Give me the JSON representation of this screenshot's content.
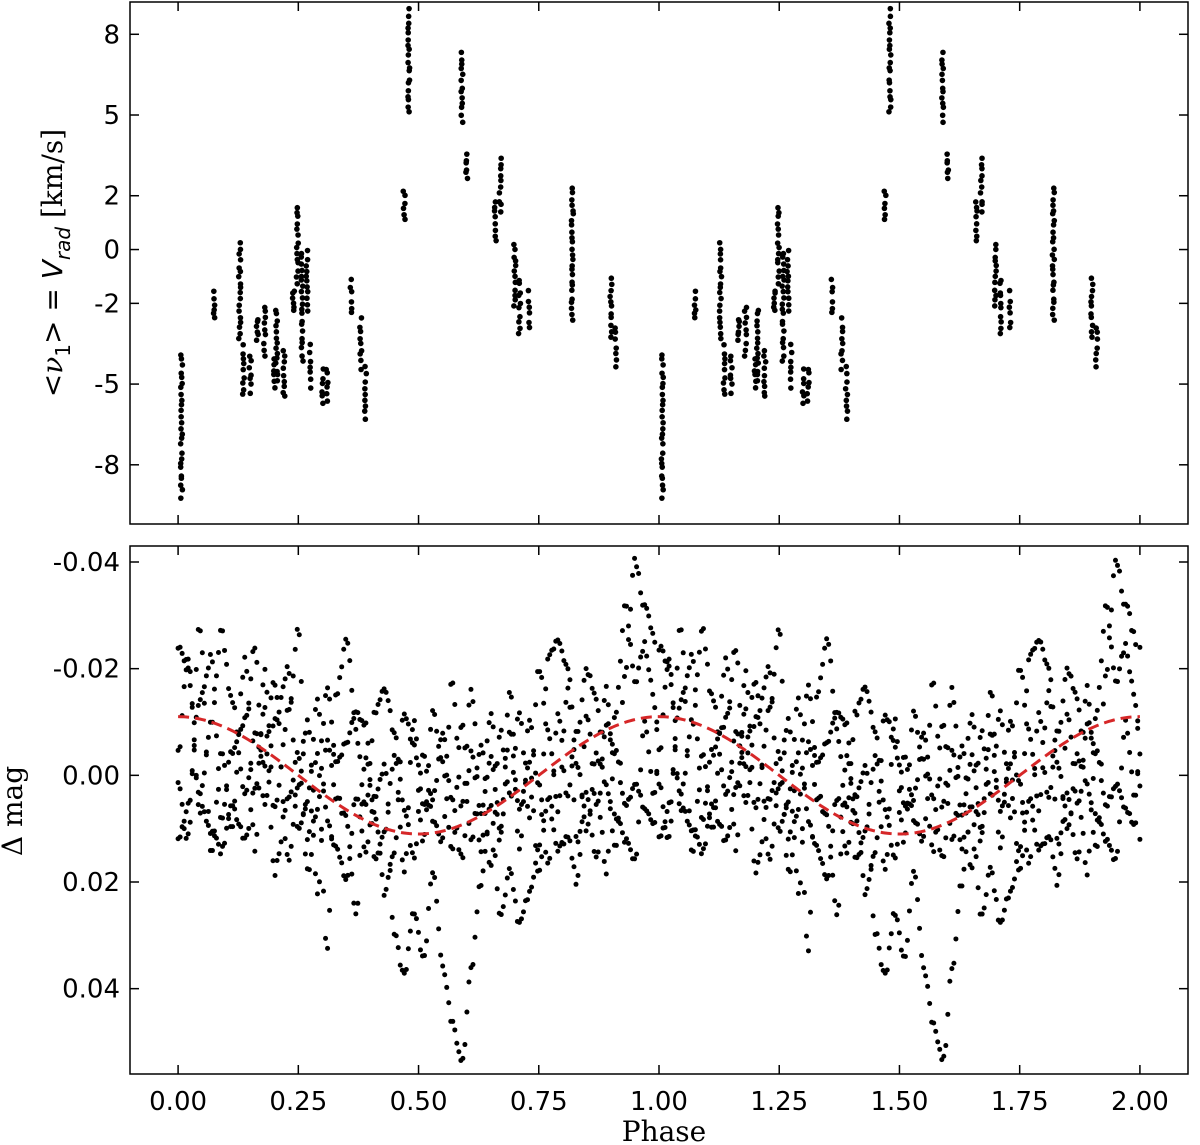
{
  "chart_data": [
    {
      "type": "scatter",
      "panel": "top",
      "ylabel": "<ν1> = Vrad [km/s]",
      "ylabel_parts": {
        "open": "<",
        "nu": "ν",
        "sub1": "1",
        "close": "> = ",
        "v": "V",
        "sub2": "rad",
        "unit": " [km/s]"
      },
      "xlim": [
        -0.1,
        2.1
      ],
      "ylim": [
        -10.2,
        9.2
      ],
      "ytick_values": [
        -8,
        -5,
        -2,
        0,
        2,
        5,
        8
      ],
      "ytick_labels": [
        "-8",
        "-5",
        "-2",
        "0",
        "2",
        "5",
        "8"
      ],
      "groups": [
        {
          "phase": 0.007,
          "vmin": -9.2,
          "vmax": -3.9
        },
        {
          "phase": 0.075,
          "vmin": -2.6,
          "vmax": -1.6
        },
        {
          "phase": 0.128,
          "vmin": -3.3,
          "vmax": 0.2
        },
        {
          "phase": 0.136,
          "vmin": -5.4,
          "vmax": -3.6
        },
        {
          "phase": 0.15,
          "vmin": -5.3,
          "vmax": -3.9
        },
        {
          "phase": 0.165,
          "vmin": -3.3,
          "vmax": -2.6
        },
        {
          "phase": 0.18,
          "vmin": -3.9,
          "vmax": -2.1
        },
        {
          "phase": 0.2,
          "vmin": -5.1,
          "vmax": -4.1
        },
        {
          "phase": 0.205,
          "vmin": -4.9,
          "vmax": -2.2
        },
        {
          "phase": 0.22,
          "vmin": -5.5,
          "vmax": -3.8
        },
        {
          "phase": 0.24,
          "vmin": -2.3,
          "vmax": -1.5
        },
        {
          "phase": 0.248,
          "vmin": -1.2,
          "vmax": 1.6
        },
        {
          "phase": 0.258,
          "vmin": -4.1,
          "vmax": -0.1
        },
        {
          "phase": 0.268,
          "vmin": -2.3,
          "vmax": -0.1
        },
        {
          "phase": 0.275,
          "vmin": -5.1,
          "vmax": -3.6
        },
        {
          "phase": 0.3,
          "vmin": -5.7,
          "vmax": -4.5
        },
        {
          "phase": 0.31,
          "vmin": -5.6,
          "vmax": -4.4
        },
        {
          "phase": 0.36,
          "vmin": -2.4,
          "vmax": -1.1
        },
        {
          "phase": 0.38,
          "vmin": -4.4,
          "vmax": -2.6
        },
        {
          "phase": 0.39,
          "vmin": -6.3,
          "vmax": -4.4
        },
        {
          "phase": 0.47,
          "vmin": 1.1,
          "vmax": 2.2
        },
        {
          "phase": 0.48,
          "vmin": 5.1,
          "vmax": 8.9
        },
        {
          "phase": 0.59,
          "vmin": 4.8,
          "vmax": 7.3
        },
        {
          "phase": 0.6,
          "vmin": 2.7,
          "vmax": 3.5
        },
        {
          "phase": 0.66,
          "vmin": 0.3,
          "vmax": 1.8
        },
        {
          "phase": 0.67,
          "vmin": 1.4,
          "vmax": 3.4
        },
        {
          "phase": 0.7,
          "vmin": -2.1,
          "vmax": 0.2
        },
        {
          "phase": 0.71,
          "vmin": -3.1,
          "vmax": -1.1
        },
        {
          "phase": 0.73,
          "vmin": -2.9,
          "vmax": -1.6
        },
        {
          "phase": 0.82,
          "vmin": -2.6,
          "vmax": 2.3
        },
        {
          "phase": 0.9,
          "vmin": -3.2,
          "vmax": -1.1
        },
        {
          "phase": 0.91,
          "vmin": -4.3,
          "vmax": -2.9
        }
      ]
    },
    {
      "type": "scatter",
      "panel": "bottom",
      "title": "",
      "xlabel": "Phase",
      "ylabel": "Δ mag",
      "xlim": [
        -0.1,
        2.1
      ],
      "ylim": [
        0.056,
        -0.043
      ],
      "inverted_y": true,
      "xtick_values": [
        0.0,
        0.25,
        0.5,
        0.75,
        1.0,
        1.25,
        1.5,
        1.75,
        2.0
      ],
      "xtick_labels": [
        "0.00",
        "0.25",
        "0.50",
        "0.75",
        "1.00",
        "1.25",
        "1.50",
        "1.75",
        "2.00"
      ],
      "ytick_values": [
        -0.04,
        -0.02,
        0.0,
        0.02,
        0.04
      ],
      "ytick_labels": [
        "-0.04",
        "-0.02",
        "0.00",
        "0.02",
        "0.04"
      ],
      "model": {
        "type": "sinusoid",
        "color": "#d62728",
        "style": "dashed",
        "amplitude": 0.011,
        "period": 1.0,
        "zero_phase_value": -0.011
      },
      "anchors": [
        [
          0.0,
          0.002,
          -0.024,
          0.012,
          -0.004
        ],
        [
          0.02,
          0.012,
          -0.02,
          0.006,
          -0.022
        ],
        [
          0.045,
          -0.028,
          0.004,
          -0.014,
          0.006
        ],
        [
          0.07,
          0.015,
          -0.01,
          -0.022,
          0.01
        ],
        [
          0.09,
          -0.005,
          -0.027,
          0.008,
          0.014
        ],
        [
          0.11,
          0.01,
          -0.015,
          -0.004,
          0.006
        ],
        [
          0.14,
          -0.022,
          0.004,
          -0.01,
          0.012
        ],
        [
          0.16,
          0.014,
          -0.008,
          -0.024,
          0.002
        ],
        [
          0.18,
          -0.02,
          -0.002,
          0.006,
          -0.012
        ],
        [
          0.2,
          0.006,
          -0.018,
          -0.01,
          0.018
        ],
        [
          0.23,
          -0.012,
          0.016,
          -0.02,
          0.004
        ],
        [
          0.25,
          -0.027,
          0.002,
          0.01,
          -0.004
        ],
        [
          0.27,
          0.012,
          -0.01,
          0.004,
          0.018
        ],
        [
          0.29,
          -0.004,
          0.022,
          -0.014,
          0.006
        ],
        [
          0.31,
          0.033,
          -0.006,
          0.008,
          -0.016
        ],
        [
          0.33,
          -0.016,
          0.004,
          0.014,
          -0.002
        ],
        [
          0.35,
          -0.026,
          0.008,
          0.02,
          -0.006
        ],
        [
          0.37,
          -0.008,
          0.026,
          0.004,
          -0.012
        ],
        [
          0.39,
          0.006,
          -0.004,
          0.014,
          -0.01
        ],
        [
          0.41,
          -0.012,
          0.008,
          0.004,
          0.016
        ],
        [
          0.43,
          -0.016,
          0.022,
          -0.002,
          0.01
        ],
        [
          0.45,
          -0.008,
          0.014,
          0.03,
          -0.004
        ],
        [
          0.47,
          0.006,
          -0.012,
          0.038,
          0.018
        ],
        [
          0.49,
          0.016,
          -0.006,
          0.026,
          -0.01
        ],
        [
          0.51,
          -0.004,
          0.012,
          0.034,
          0.006
        ],
        [
          0.53,
          0.008,
          -0.012,
          0.018,
          0.004
        ],
        [
          0.55,
          0.012,
          -0.002,
          0.036,
          -0.008
        ],
        [
          0.57,
          -0.018,
          0.014,
          0.046,
          0.004
        ],
        [
          0.59,
          0.006,
          -0.01,
          0.054,
          0.016
        ],
        [
          0.61,
          -0.016,
          0.012,
          0.036,
          -0.004
        ],
        [
          0.63,
          0.008,
          -0.006,
          0.02,
          0.014
        ],
        [
          0.65,
          -0.012,
          0.018,
          0.006,
          -0.004
        ],
        [
          0.67,
          0.01,
          -0.008,
          0.026,
          0.012
        ],
        [
          0.69,
          -0.016,
          0.004,
          0.018,
          -0.008
        ],
        [
          0.71,
          0.014,
          -0.012,
          0.028,
          0.006
        ],
        [
          0.73,
          -0.01,
          0.008,
          0.022,
          -0.002
        ],
        [
          0.75,
          0.002,
          -0.02,
          0.014,
          0.018
        ],
        [
          0.77,
          0.016,
          -0.008,
          -0.022,
          0.004
        ],
        [
          0.79,
          -0.012,
          0.006,
          -0.026,
          0.014
        ],
        [
          0.81,
          0.004,
          -0.016,
          -0.02,
          0.012
        ],
        [
          0.83,
          -0.008,
          0.012,
          -0.002,
          0.02
        ],
        [
          0.85,
          -0.02,
          0.004,
          0.01,
          -0.012
        ],
        [
          0.87,
          -0.014,
          0.016,
          -0.004,
          0.006
        ],
        [
          0.89,
          0.002,
          -0.01,
          0.018,
          -0.016
        ],
        [
          0.91,
          0.014,
          -0.004,
          -0.012,
          0.008
        ],
        [
          0.93,
          -0.02,
          0.006,
          -0.032,
          0.012
        ],
        [
          0.95,
          -0.04,
          0.002,
          -0.018,
          0.016
        ],
        [
          0.97,
          -0.032,
          0.006,
          -0.024,
          -0.01
        ],
        [
          0.99,
          -0.026,
          0.01,
          -0.014,
          0.004
        ]
      ]
    }
  ]
}
